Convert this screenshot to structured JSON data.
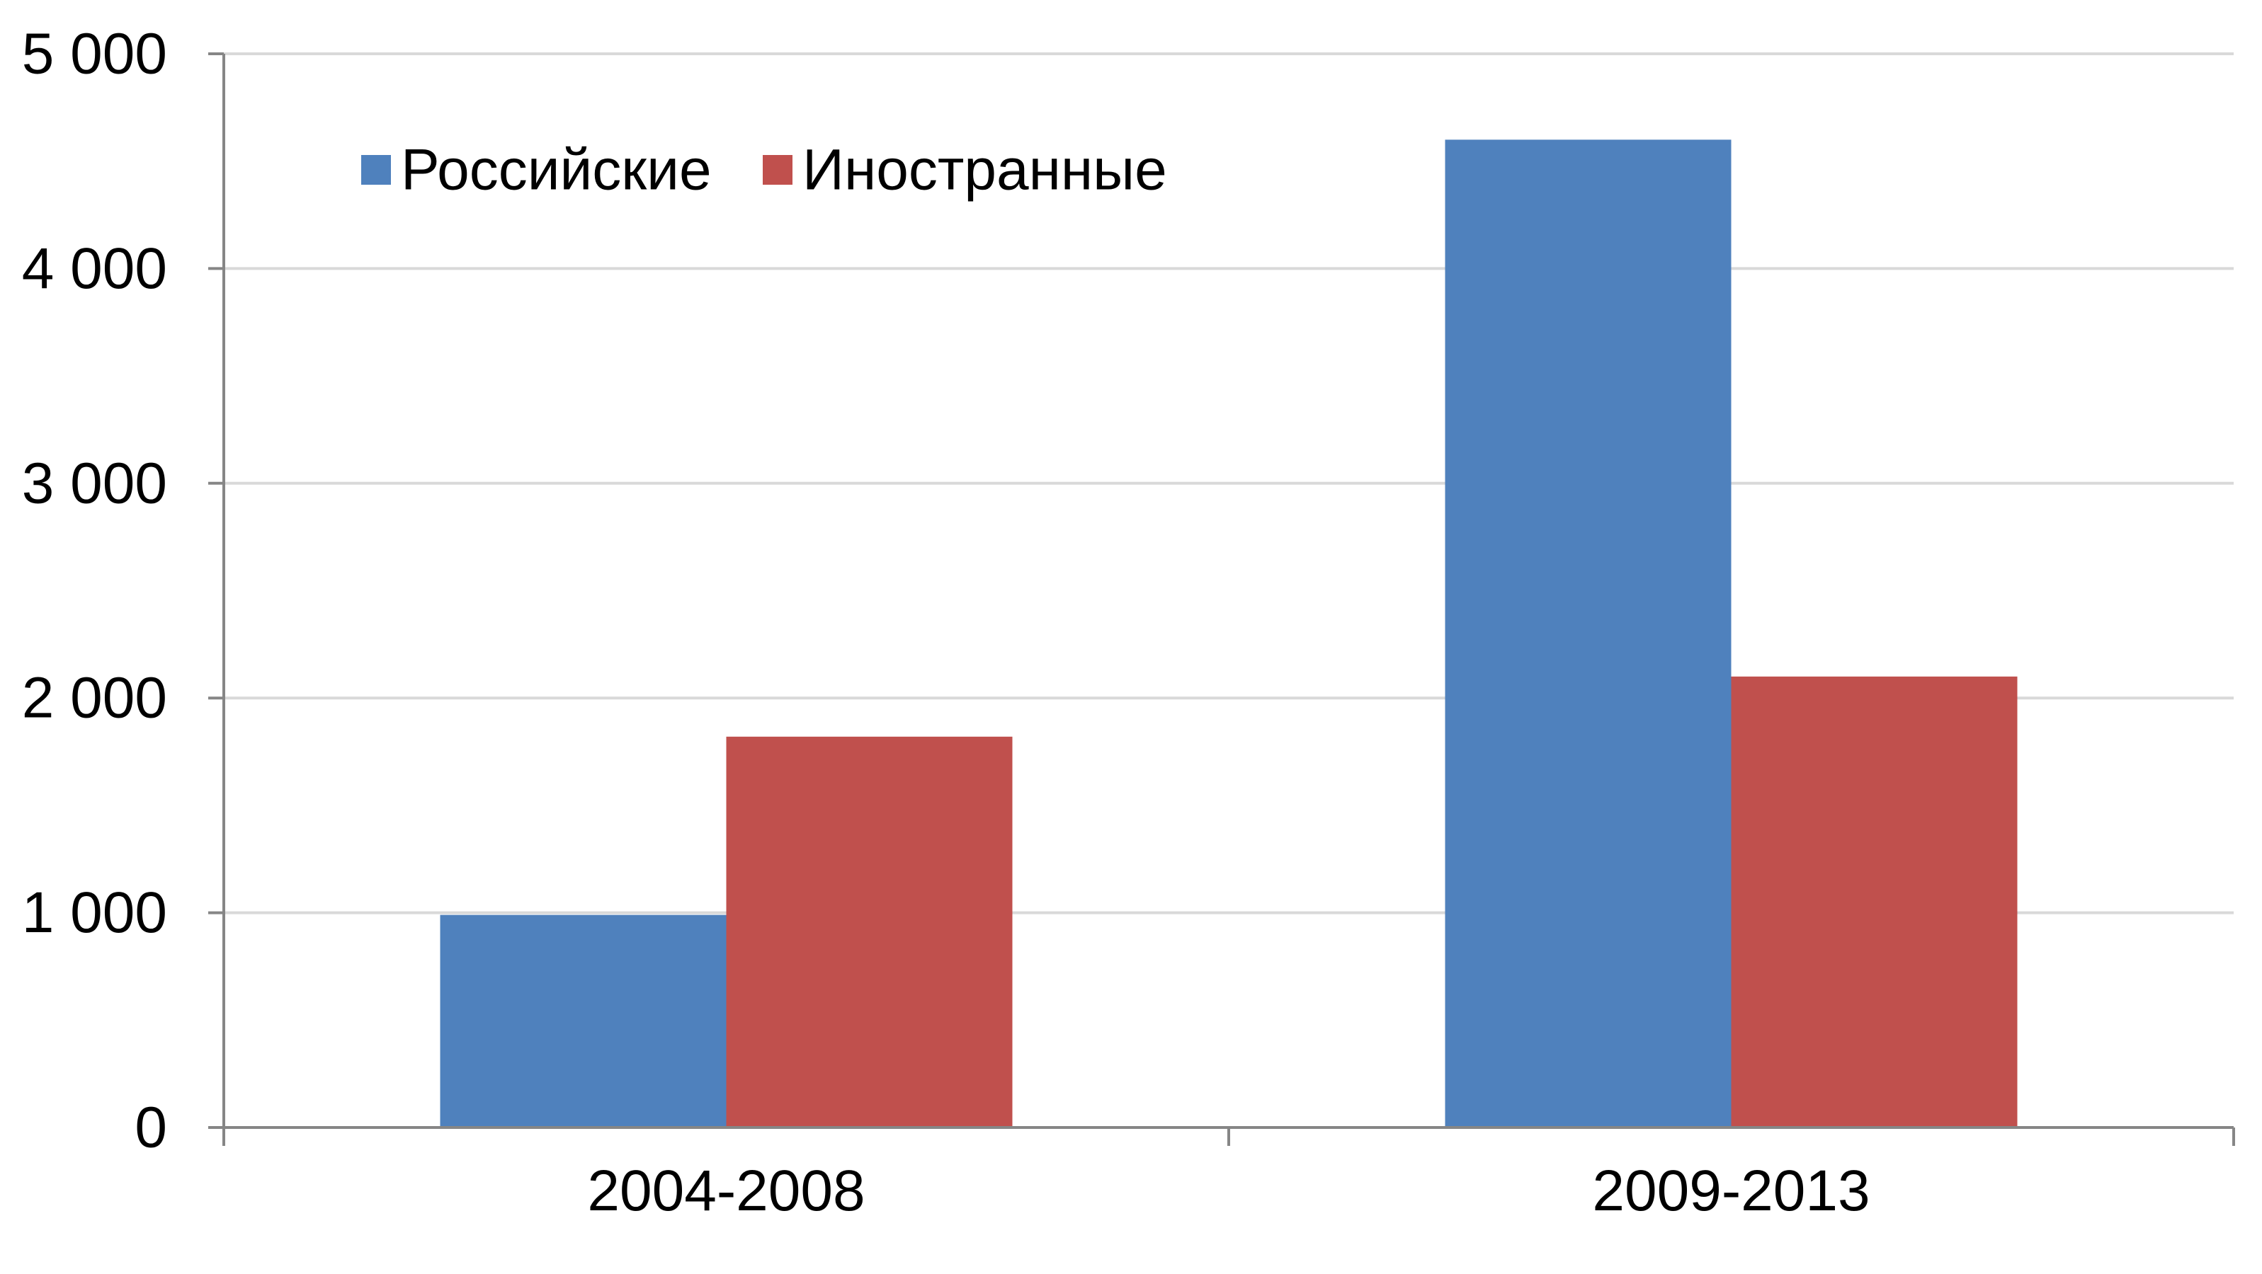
{
  "chart_data": {
    "type": "bar",
    "categories": [
      "2004-2008",
      "2009-2013"
    ],
    "series": [
      {
        "name": "Российские",
        "color": "#4F81BD",
        "values": [
          990,
          4600
        ]
      },
      {
        "name": "Иностранные",
        "color": "#C0504D",
        "values": [
          1820,
          2100
        ]
      }
    ],
    "ylim": [
      0,
      5000
    ],
    "y_ticks": [
      0,
      1000,
      2000,
      3000,
      4000,
      5000
    ],
    "y_tick_labels": [
      "0",
      "1 000",
      "2 000",
      "3 000",
      "4 000",
      "5 000"
    ],
    "title": "",
    "xlabel": "",
    "ylabel": "",
    "grid": true,
    "legend_position": "top-left"
  }
}
